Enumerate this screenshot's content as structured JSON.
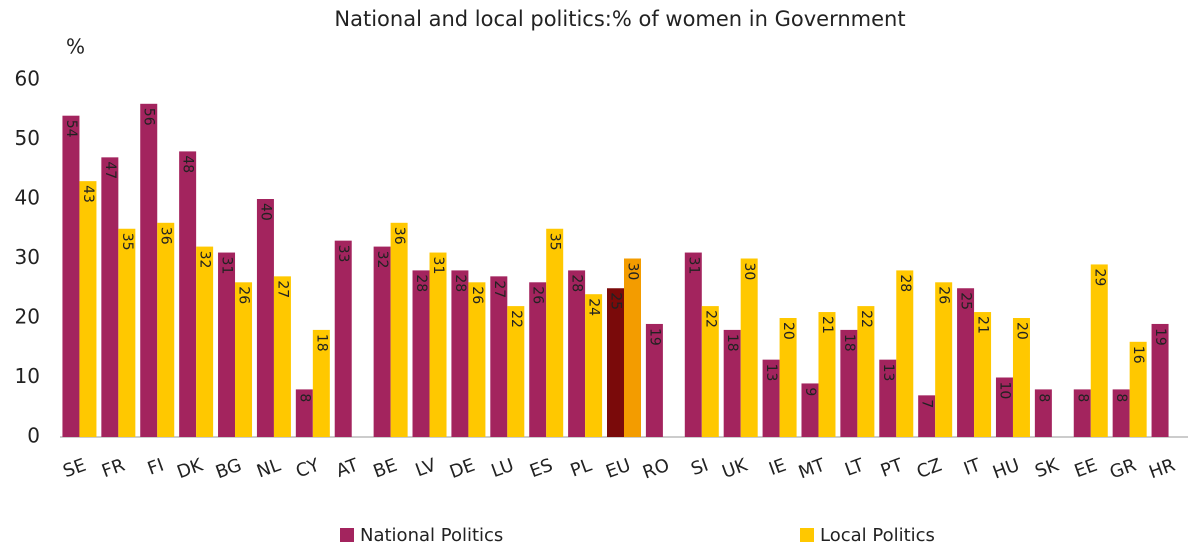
{
  "chart_data": {
    "type": "bar",
    "title": "National and local politics:% of women in Government",
    "y_label": "%",
    "categories": [
      "SE",
      "FR",
      "FI",
      "DK",
      "BG",
      "NL",
      "CY",
      "AT",
      "BE",
      "LV",
      "DE",
      "LU",
      "ES",
      "PL",
      "EU",
      "RO",
      "SI",
      "UK",
      "IE",
      "MT",
      "LT",
      "PT",
      "CZ",
      "IT",
      "HU",
      "SK",
      "EE",
      "GR",
      "HR"
    ],
    "series": [
      {
        "name": "National Politics",
        "color": "#a3245e",
        "highlight_color": "#7a0a0a",
        "label_color": "#ffffff",
        "values": [
          54,
          47,
          56,
          48,
          31,
          40,
          8,
          33,
          32,
          28,
          28,
          27,
          26,
          28,
          25,
          19,
          31,
          18,
          13,
          9,
          18,
          13,
          7,
          25,
          10,
          8,
          8,
          8,
          19
        ]
      },
      {
        "name": "Local Politics",
        "color": "#ffc800",
        "highlight_color": "#f39c00",
        "label_color": "#222222",
        "values": [
          43,
          35,
          36,
          32,
          26,
          27,
          18,
          null,
          36,
          31,
          26,
          22,
          35,
          24,
          30,
          null,
          22,
          30,
          20,
          21,
          22,
          28,
          26,
          21,
          20,
          null,
          29,
          16,
          null
        ]
      }
    ],
    "highlight_category": "EU",
    "ylim": [
      0,
      60
    ],
    "yticks": [
      0,
      10,
      20,
      30,
      40,
      50,
      60
    ],
    "grid": false,
    "legend": "bottom"
  }
}
